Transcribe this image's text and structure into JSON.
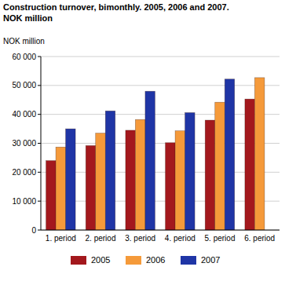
{
  "chart_data": {
    "type": "bar",
    "title": "Construction turnover, bimonthly. 2005, 2006 and 2007.",
    "subtitle": "NOK million",
    "y_label": "NOK million",
    "categories": [
      "1. period",
      "2. period",
      "3. period",
      "4. period",
      "5. period",
      "6. period"
    ],
    "series": [
      {
        "name": "2005",
        "color": "#a3181d",
        "values": [
          24000,
          29200,
          34500,
          30200,
          38000,
          45300
        ]
      },
      {
        "name": "2006",
        "color": "#f59a3a",
        "values": [
          28700,
          33500,
          38200,
          34300,
          44200,
          52700
        ]
      },
      {
        "name": "2007",
        "color": "#1f35a6",
        "values": [
          35000,
          41200,
          48000,
          40600,
          52200,
          null
        ]
      }
    ],
    "ylim": [
      0,
      60000
    ],
    "yticks": [
      0,
      {
        "value": 10000,
        "label": "10 000"
      },
      {
        "value": 20000,
        "label": "20 000"
      },
      {
        "value": 30000,
        "label": "30 000"
      },
      {
        "value": 40000,
        "label": "40 000"
      },
      {
        "value": 50000,
        "label": "50 000"
      },
      {
        "value": 60000,
        "label": "60 000"
      }
    ],
    "grid": true,
    "legend": "bottom"
  }
}
